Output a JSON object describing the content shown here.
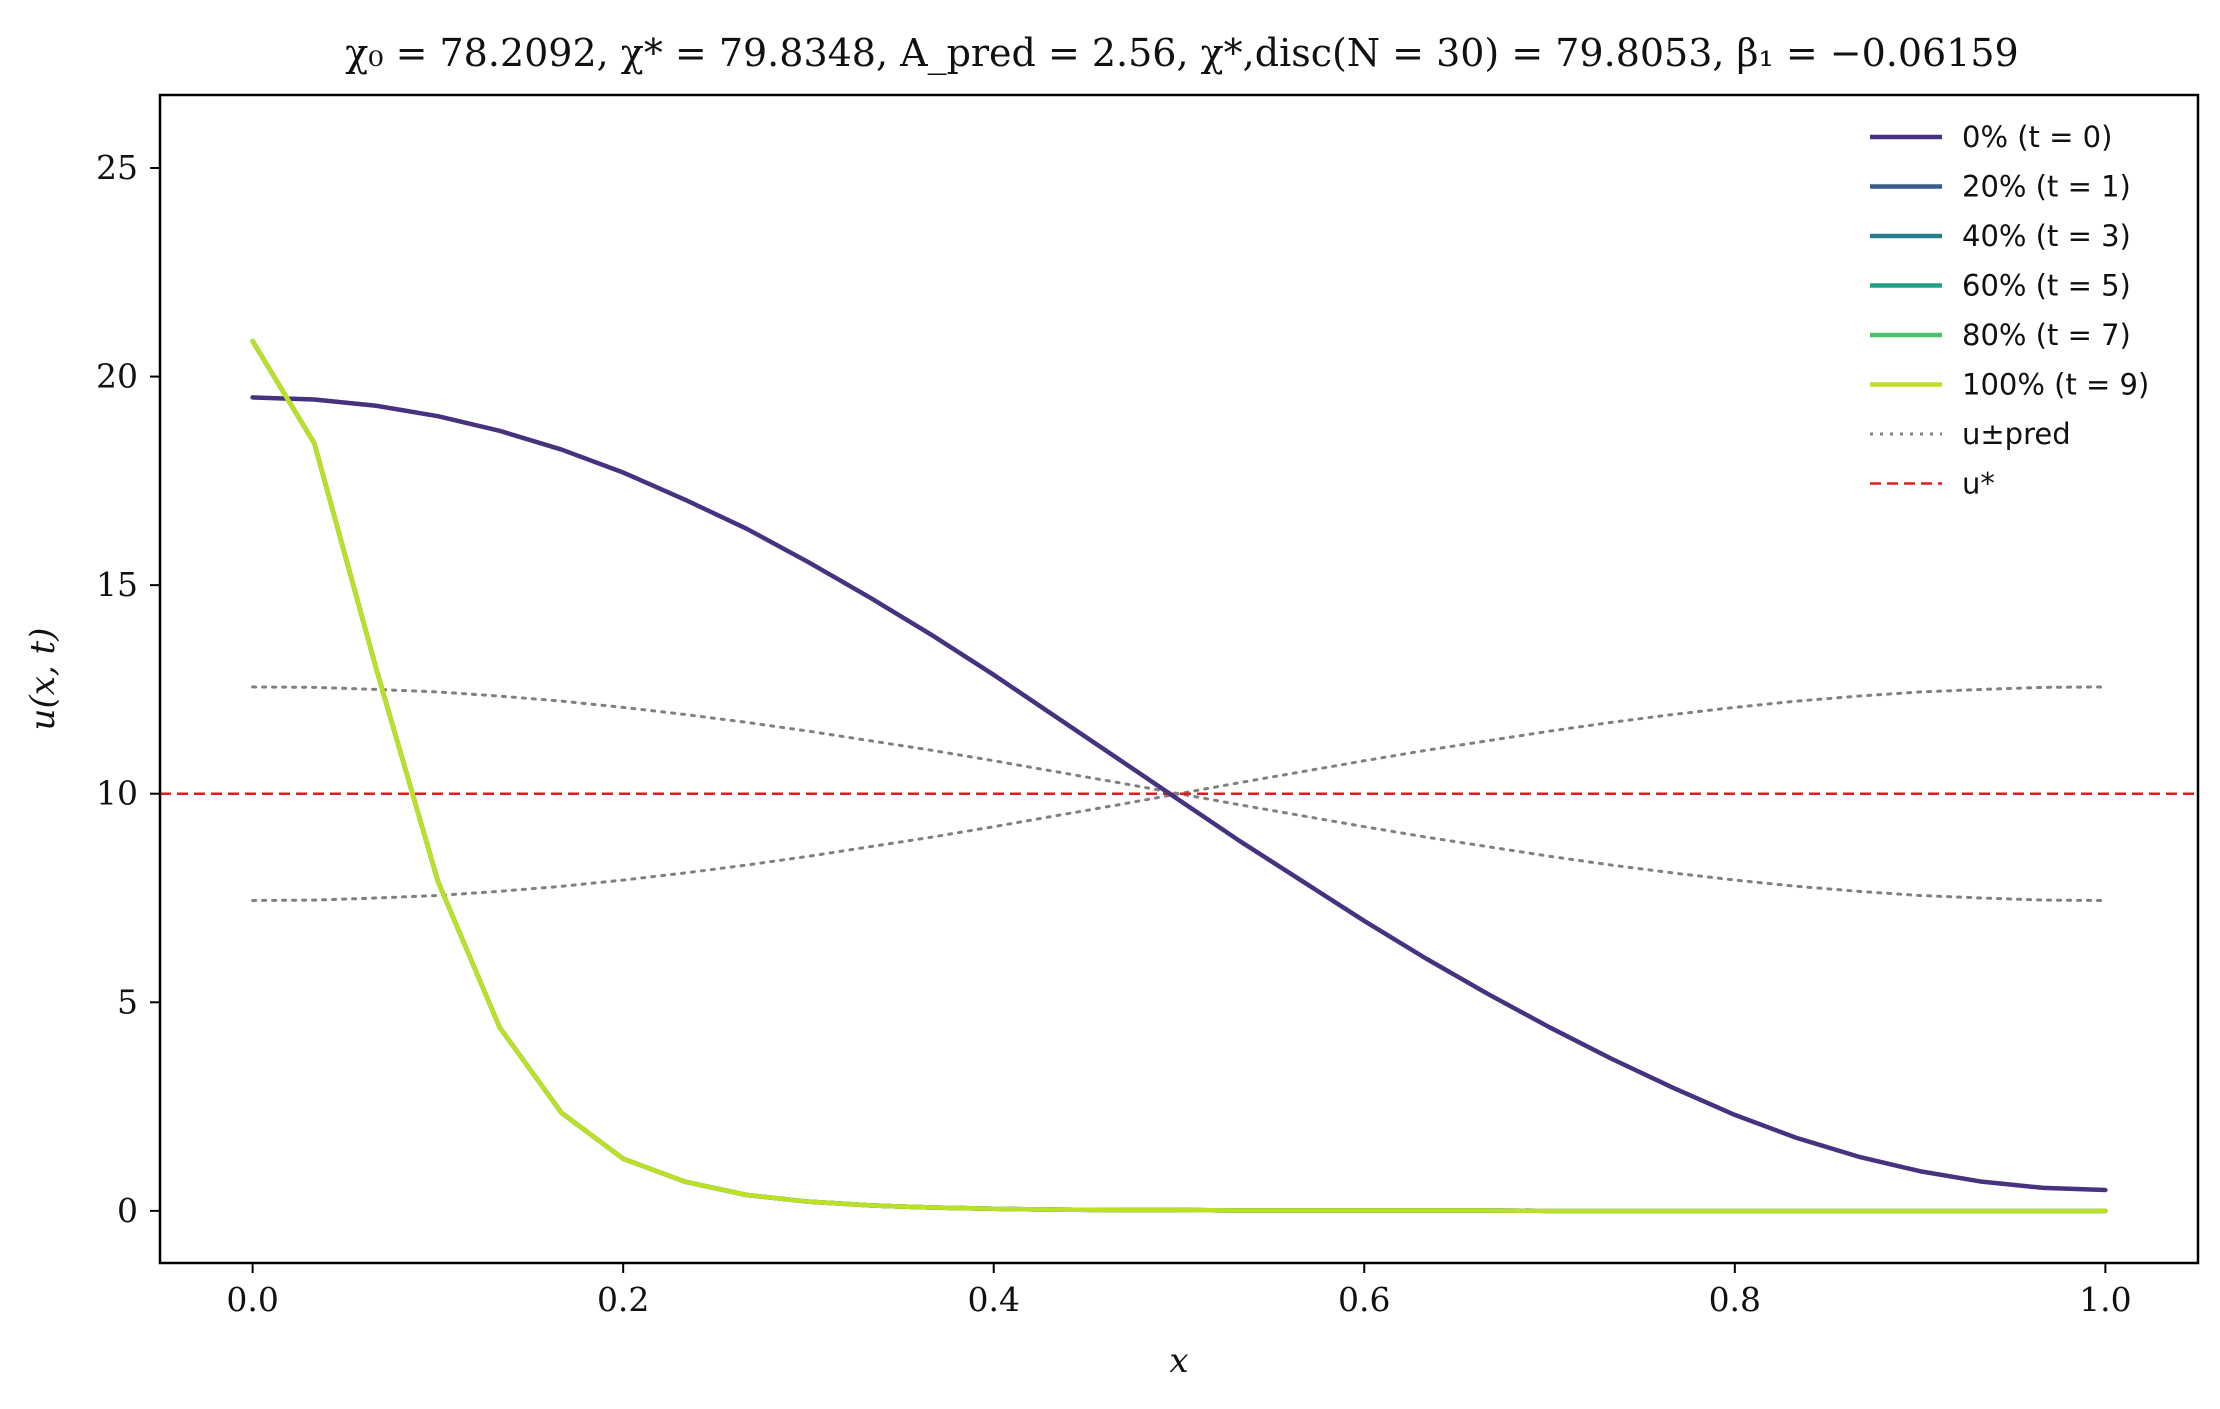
{
  "chart_data": {
    "type": "line",
    "title": "χ₀ = 78.2092,  χ* = 79.8348,  A_pred = 2.56,  χ*,disc(N = 30) = 79.8053,  β₁ = −0.06159",
    "xlabel": "x",
    "ylabel": "u(x, t)",
    "xlim": [
      -0.05,
      1.05
    ],
    "ylim": [
      -1.25,
      26.75
    ],
    "xticks": [
      "0.0",
      "0.2",
      "0.4",
      "0.6",
      "0.8",
      "1.0"
    ],
    "xtick_values": [
      0.0,
      0.2,
      0.4,
      0.6,
      0.8,
      1.0
    ],
    "yticks": [
      "0",
      "5",
      "10",
      "15",
      "20",
      "25"
    ],
    "ytick_values": [
      0,
      5,
      10,
      15,
      20,
      25
    ],
    "grid": false,
    "legend_position": "top-right",
    "x": [
      0.0,
      0.0333,
      0.0667,
      0.1,
      0.1333,
      0.1667,
      0.2,
      0.2333,
      0.2667,
      0.3,
      0.3333,
      0.3667,
      0.4,
      0.4333,
      0.4667,
      0.5,
      0.5333,
      0.5667,
      0.6,
      0.6333,
      0.6667,
      0.7,
      0.7333,
      0.7667,
      0.8,
      0.8333,
      0.8667,
      0.9,
      0.9333,
      0.9667,
      1.0
    ],
    "series": [
      {
        "name": "0% (t = 0)",
        "color": "#46327e",
        "style": "solid",
        "values": [
          19.5,
          19.45,
          19.3,
          19.05,
          18.7,
          18.25,
          17.7,
          17.05,
          16.35,
          15.55,
          14.7,
          13.8,
          12.85,
          11.85,
          10.85,
          9.85,
          8.85,
          7.9,
          6.95,
          6.05,
          5.2,
          4.4,
          3.65,
          2.95,
          2.3,
          1.75,
          1.3,
          0.95,
          0.7,
          0.55,
          0.5
        ]
      },
      {
        "name": "20% (t = 1)",
        "color": "#365c8d",
        "style": "solid",
        "values": [
          20.85,
          18.4,
          13.0,
          7.9,
          4.4,
          2.35,
          1.25,
          0.7,
          0.38,
          0.22,
          0.13,
          0.08,
          0.05,
          0.03,
          0.02,
          0.02,
          0.01,
          0.01,
          0.01,
          0.01,
          0.01,
          0.0,
          0.0,
          0.0,
          0.0,
          0.0,
          0.0,
          0.0,
          0.0,
          0.0,
          0.0
        ]
      },
      {
        "name": "40% (t = 3)",
        "color": "#277f8e",
        "style": "solid",
        "values": [
          20.85,
          18.4,
          13.0,
          7.9,
          4.4,
          2.35,
          1.25,
          0.7,
          0.38,
          0.22,
          0.13,
          0.08,
          0.05,
          0.03,
          0.02,
          0.02,
          0.01,
          0.01,
          0.01,
          0.01,
          0.01,
          0.0,
          0.0,
          0.0,
          0.0,
          0.0,
          0.0,
          0.0,
          0.0,
          0.0,
          0.0
        ]
      },
      {
        "name": "60% (t = 5)",
        "color": "#1fa187",
        "style": "solid",
        "values": [
          20.85,
          18.4,
          13.0,
          7.9,
          4.4,
          2.35,
          1.25,
          0.7,
          0.38,
          0.22,
          0.13,
          0.08,
          0.05,
          0.03,
          0.02,
          0.02,
          0.01,
          0.01,
          0.01,
          0.01,
          0.01,
          0.0,
          0.0,
          0.0,
          0.0,
          0.0,
          0.0,
          0.0,
          0.0,
          0.0,
          0.0
        ]
      },
      {
        "name": "80% (t = 7)",
        "color": "#4ac16d",
        "style": "solid",
        "values": [
          20.85,
          18.4,
          13.0,
          7.9,
          4.4,
          2.35,
          1.25,
          0.7,
          0.38,
          0.22,
          0.13,
          0.08,
          0.05,
          0.03,
          0.02,
          0.02,
          0.01,
          0.01,
          0.01,
          0.01,
          0.01,
          0.0,
          0.0,
          0.0,
          0.0,
          0.0,
          0.0,
          0.0,
          0.0,
          0.0,
          0.0
        ]
      },
      {
        "name": "100% (t = 9)",
        "color": "#bddf26",
        "style": "solid",
        "values": [
          20.85,
          18.4,
          13.0,
          7.9,
          4.4,
          2.35,
          1.25,
          0.7,
          0.38,
          0.22,
          0.13,
          0.08,
          0.05,
          0.03,
          0.02,
          0.02,
          0.01,
          0.01,
          0.01,
          0.01,
          0.01,
          0.0,
          0.0,
          0.0,
          0.0,
          0.0,
          0.0,
          0.0,
          0.0,
          0.0,
          0.0
        ]
      }
    ],
    "reference_curves": [
      {
        "name": "u±pred",
        "color": "#808080",
        "style": "dotted",
        "curves": [
          {
            "values": [
              12.56,
              12.55,
              12.5,
              12.44,
              12.34,
              12.22,
              12.07,
              11.9,
              11.71,
              11.5,
              11.27,
              11.04,
              10.79,
              10.53,
              10.27,
              10.0,
              9.73,
              9.47,
              9.21,
              8.96,
              8.73,
              8.5,
              8.29,
              8.1,
              7.93,
              7.78,
              7.66,
              7.56,
              7.5,
              7.45,
              7.44
            ]
          },
          {
            "values": [
              7.44,
              7.45,
              7.5,
              7.56,
              7.66,
              7.78,
              7.93,
              8.1,
              8.29,
              8.5,
              8.73,
              8.96,
              9.21,
              9.47,
              9.73,
              10.0,
              10.27,
              10.53,
              10.79,
              11.04,
              11.27,
              11.5,
              11.71,
              11.9,
              12.07,
              12.22,
              12.34,
              12.44,
              12.5,
              12.55,
              12.56
            ]
          }
        ]
      },
      {
        "name": "u*",
        "color": "#e41a1c",
        "style": "dashed",
        "y": 10.0
      }
    ]
  }
}
